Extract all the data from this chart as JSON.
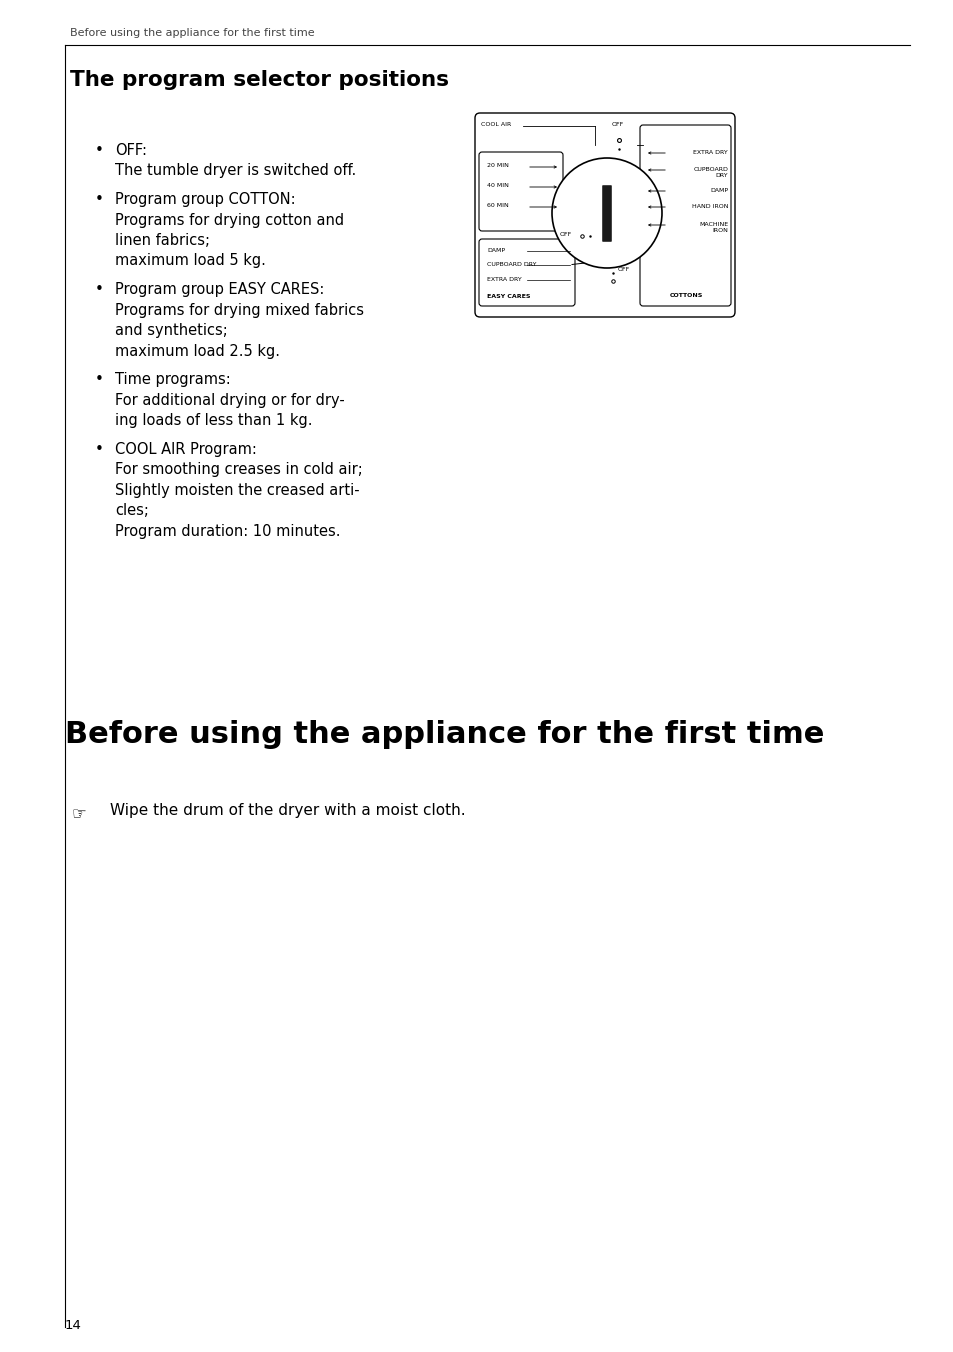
{
  "bg_color": "#ffffff",
  "page_width": 9.54,
  "page_height": 13.52,
  "header_text": "Before using the appliance for the first time",
  "section1_title": "The program selector positions",
  "bullet_points": [
    {
      "title": "OFF:",
      "body": "The tumble dryer is switched off."
    },
    {
      "title": "Program group COTTON:",
      "body": "Programs for drying cotton and\nlinen fabrics;\nmaximum load 5 kg."
    },
    {
      "title": "Program group EASY CARES:",
      "body": "Programs for drying mixed fabrics\nand synthetics;\nmaximum load 2.5 kg."
    },
    {
      "title": "Time programs:",
      "body": "For additional drying or for dry-\ning loads of less than 1 kg."
    },
    {
      "title": "COOL AIR Program:",
      "body": "For smoothing creases in cold air;\nSlightly moisten the creased arti-\ncles;\nProgram duration: 10 minutes."
    }
  ],
  "section2_title": "Before using the appliance for the first time",
  "section2_note": "Wipe the drum of the dryer with a moist cloth.",
  "page_number": "14",
  "dial": {
    "cool_air": "COOL AIR",
    "off_top": "OFF",
    "off_center": "OFF",
    "off_bottom": "OFF",
    "left_top_items": [
      "20 MIN",
      "40 MIN",
      "60 MIN"
    ],
    "left_bottom_items": [
      "DAMP",
      "CUPBOARD DRY",
      "EXTRA DRY"
    ],
    "left_footer": "EASY CARES",
    "right_items": [
      "EXTRA DRY",
      "CUPBOARD\nDRY",
      "DAMP",
      "HAND IRON",
      "MACHINE\nIRON"
    ],
    "right_footer": "COTTONS"
  }
}
